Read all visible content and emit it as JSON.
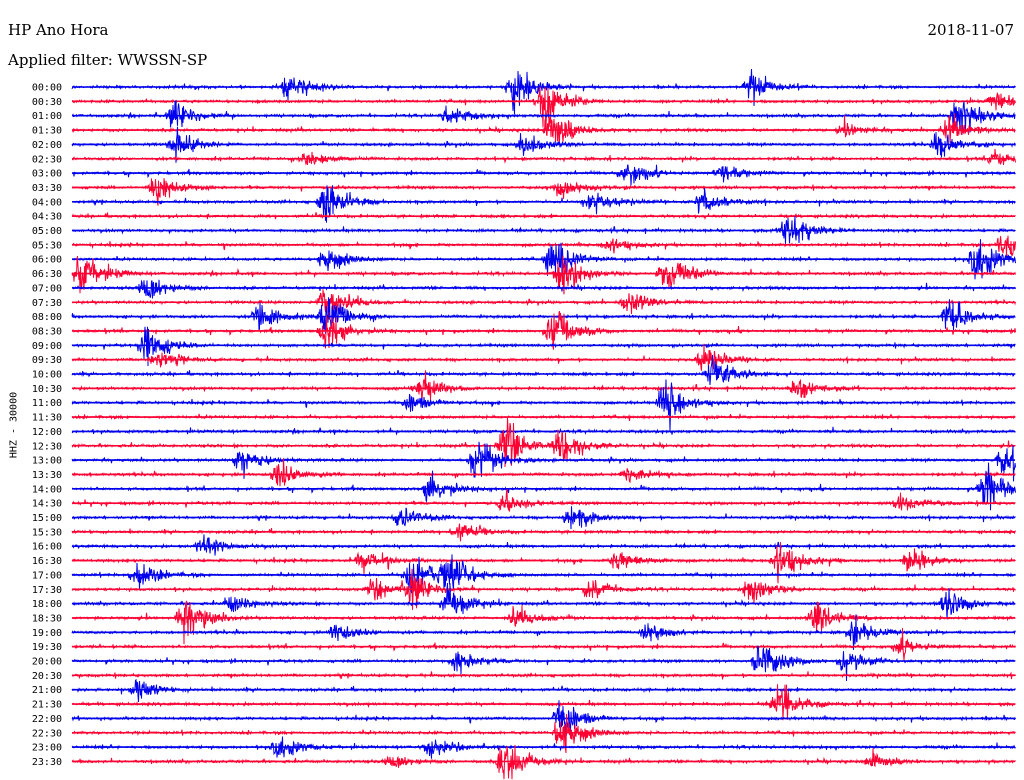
{
  "header": {
    "station": "HP Ano Hora",
    "date": "2018-11-07",
    "filter": "Applied filter: WWSSN-SP"
  },
  "chart_data": {
    "type": "line",
    "subtype": "helicorder",
    "title": "HP Ano Hora",
    "subtitle": "Applied filter: WWSSN-SP",
    "ylabel": "HHZ - 30000",
    "colors": [
      "#0000ee",
      "#ff0033"
    ],
    "grid": false,
    "tick_labels": [
      "00:00",
      "00:30",
      "01:00",
      "01:30",
      "02:00",
      "02:30",
      "03:00",
      "03:30",
      "04:00",
      "04:30",
      "05:00",
      "05:30",
      "06:00",
      "06:30",
      "07:00",
      "07:30",
      "08:00",
      "08:30",
      "09:00",
      "09:30",
      "10:00",
      "10:30",
      "11:00",
      "11:30",
      "12:00",
      "12:30",
      "13:00",
      "13:30",
      "14:00",
      "14:30",
      "15:00",
      "15:30",
      "16:00",
      "16:30",
      "17:00",
      "17:30",
      "18:00",
      "18:30",
      "19:00",
      "19:30",
      "20:00",
      "20:30",
      "21:00",
      "21:30",
      "22:00",
      "22:30",
      "23:00",
      "23:30"
    ],
    "events": [
      [
        0,
        0.23,
        0.6
      ],
      [
        0,
        0.47,
        1.0
      ],
      [
        0,
        0.72,
        0.6
      ],
      [
        1,
        0.5,
        1.0
      ],
      [
        1,
        0.98,
        0.4
      ],
      [
        2,
        0.11,
        0.7
      ],
      [
        2,
        0.4,
        0.4
      ],
      [
        2,
        0.94,
        1.0
      ],
      [
        3,
        0.51,
        1.0
      ],
      [
        3,
        0.93,
        0.6
      ],
      [
        3,
        0.82,
        0.3
      ],
      [
        4,
        0.11,
        0.6
      ],
      [
        4,
        0.48,
        0.5
      ],
      [
        4,
        0.92,
        0.6
      ],
      [
        5,
        0.25,
        0.4
      ],
      [
        5,
        0.98,
        0.4
      ],
      [
        6,
        0.59,
        0.5
      ],
      [
        6,
        0.69,
        0.4
      ],
      [
        7,
        0.09,
        0.7
      ],
      [
        7,
        0.52,
        0.4
      ],
      [
        8,
        0.27,
        1.0
      ],
      [
        8,
        0.55,
        0.5
      ],
      [
        8,
        0.67,
        0.6
      ],
      [
        10,
        0.76,
        1.0
      ],
      [
        11,
        0.57,
        0.4
      ],
      [
        11,
        0.99,
        1.0
      ],
      [
        12,
        0.27,
        0.6
      ],
      [
        12,
        0.51,
        1.0
      ],
      [
        12,
        0.96,
        1.0
      ],
      [
        13,
        0.01,
        1.0
      ],
      [
        13,
        0.52,
        0.8
      ],
      [
        13,
        0.63,
        0.9
      ],
      [
        14,
        0.08,
        0.6
      ],
      [
        15,
        0.27,
        1.0
      ],
      [
        15,
        0.59,
        0.5
      ],
      [
        16,
        0.2,
        0.6
      ],
      [
        16,
        0.27,
        1.0
      ],
      [
        16,
        0.93,
        0.9
      ],
      [
        17,
        0.27,
        0.8
      ],
      [
        17,
        0.51,
        1.0
      ],
      [
        18,
        0.08,
        0.8
      ],
      [
        19,
        0.09,
        0.4
      ],
      [
        19,
        0.67,
        0.5
      ],
      [
        20,
        0.68,
        0.8
      ],
      [
        21,
        0.37,
        0.6
      ],
      [
        21,
        0.77,
        0.5
      ],
      [
        22,
        0.36,
        0.4
      ],
      [
        22,
        0.63,
        1.0
      ],
      [
        25,
        0.46,
        1.0
      ],
      [
        25,
        0.52,
        0.8
      ],
      [
        26,
        0.18,
        0.6
      ],
      [
        26,
        0.43,
        1.0
      ],
      [
        26,
        0.99,
        1.0
      ],
      [
        27,
        0.22,
        0.6
      ],
      [
        27,
        0.59,
        0.4
      ],
      [
        28,
        0.38,
        0.7
      ],
      [
        28,
        0.97,
        1.0
      ],
      [
        29,
        0.46,
        0.4
      ],
      [
        29,
        0.88,
        0.4
      ],
      [
        30,
        0.35,
        0.5
      ],
      [
        30,
        0.53,
        0.6
      ],
      [
        31,
        0.41,
        0.4
      ],
      [
        32,
        0.14,
        0.5
      ],
      [
        33,
        0.31,
        0.5
      ],
      [
        33,
        0.58,
        0.5
      ],
      [
        33,
        0.75,
        1.0
      ],
      [
        33,
        0.89,
        0.5
      ],
      [
        34,
        0.07,
        0.6
      ],
      [
        34,
        0.36,
        1.0
      ],
      [
        34,
        0.4,
        1.0
      ],
      [
        35,
        0.32,
        0.4
      ],
      [
        35,
        0.36,
        0.8
      ],
      [
        35,
        0.55,
        0.5
      ],
      [
        35,
        0.72,
        0.6
      ],
      [
        36,
        0.17,
        0.4
      ],
      [
        36,
        0.4,
        0.8
      ],
      [
        36,
        0.93,
        0.6
      ],
      [
        37,
        0.12,
        1.0
      ],
      [
        37,
        0.47,
        0.5
      ],
      [
        37,
        0.79,
        0.7
      ],
      [
        38,
        0.28,
        0.4
      ],
      [
        38,
        0.61,
        0.4
      ],
      [
        38,
        0.83,
        0.6
      ],
      [
        39,
        0.88,
        0.4
      ],
      [
        40,
        0.41,
        0.5
      ],
      [
        40,
        0.73,
        1.0
      ],
      [
        40,
        0.82,
        0.5
      ],
      [
        42,
        0.07,
        0.4
      ],
      [
        43,
        0.75,
        0.8
      ],
      [
        44,
        0.52,
        0.8
      ],
      [
        45,
        0.52,
        1.0
      ],
      [
        46,
        0.22,
        0.5
      ],
      [
        46,
        0.38,
        0.4
      ],
      [
        47,
        0.46,
        1.0
      ],
      [
        47,
        0.34,
        0.3
      ],
      [
        47,
        0.85,
        0.4
      ]
    ]
  }
}
